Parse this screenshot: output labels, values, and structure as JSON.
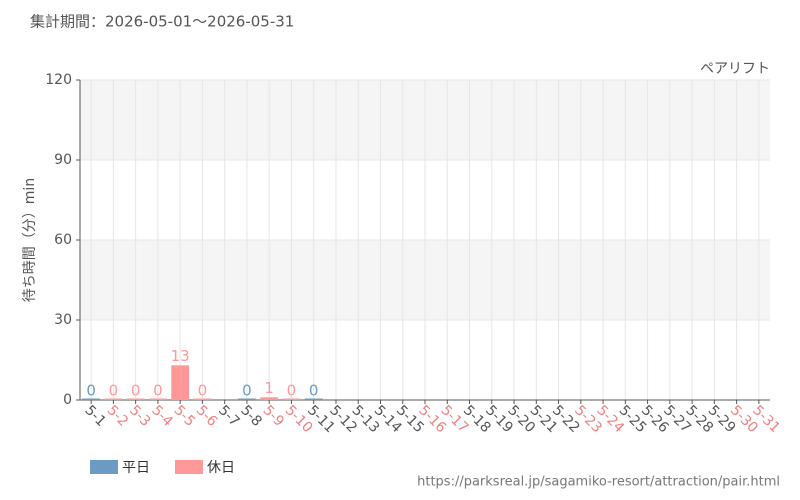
{
  "chart_data": {
    "type": "bar",
    "subtitle": "集計期間：2026-05-01～2026-05-31",
    "title": "ペアリフト",
    "ylabel": "待ち時間（分）min",
    "source": "https://parksreal.jp/sagamiko-resort/attraction/pair.html",
    "categories": [
      "5-1",
      "5-2",
      "5-3",
      "5-4",
      "5-5",
      "5-6",
      "5-7",
      "5-8",
      "5-9",
      "5-10",
      "5-11",
      "5-12",
      "5-13",
      "5-14",
      "5-15",
      "5-16",
      "5-17",
      "5-18",
      "5-19",
      "5-20",
      "5-21",
      "5-22",
      "5-23",
      "5-24",
      "5-25",
      "5-26",
      "5-27",
      "5-28",
      "5-29",
      "5-30",
      "5-31"
    ],
    "category_colors": [
      "#555555",
      "#f08080",
      "#f08080",
      "#f08080",
      "#f08080",
      "#f08080",
      "#555555",
      "#555555",
      "#f08080",
      "#f08080",
      "#555555",
      "#555555",
      "#555555",
      "#555555",
      "#555555",
      "#f08080",
      "#f08080",
      "#555555",
      "#555555",
      "#555555",
      "#555555",
      "#555555",
      "#f08080",
      "#f08080",
      "#555555",
      "#555555",
      "#555555",
      "#555555",
      "#555555",
      "#f08080",
      "#f08080"
    ],
    "series": [
      {
        "name": "平日",
        "color": "#6b9bc3",
        "values": [
          0,
          null,
          null,
          null,
          null,
          null,
          null,
          0,
          null,
          null,
          0,
          null,
          null,
          null,
          null,
          null,
          null,
          null,
          null,
          null,
          null,
          null,
          null,
          null,
          null,
          null,
          null,
          null,
          null,
          null,
          null
        ]
      },
      {
        "name": "休日",
        "color": "#ff9999",
        "values": [
          null,
          0,
          0,
          0,
          13,
          0,
          null,
          null,
          1,
          0,
          null,
          null,
          null,
          null,
          null,
          null,
          null,
          null,
          null,
          null,
          null,
          null,
          null,
          null,
          null,
          null,
          null,
          null,
          null,
          null,
          null
        ]
      }
    ],
    "ylim": [
      0,
      120
    ],
    "yticks": [
      0,
      30,
      60,
      90,
      120
    ],
    "grid": true
  }
}
